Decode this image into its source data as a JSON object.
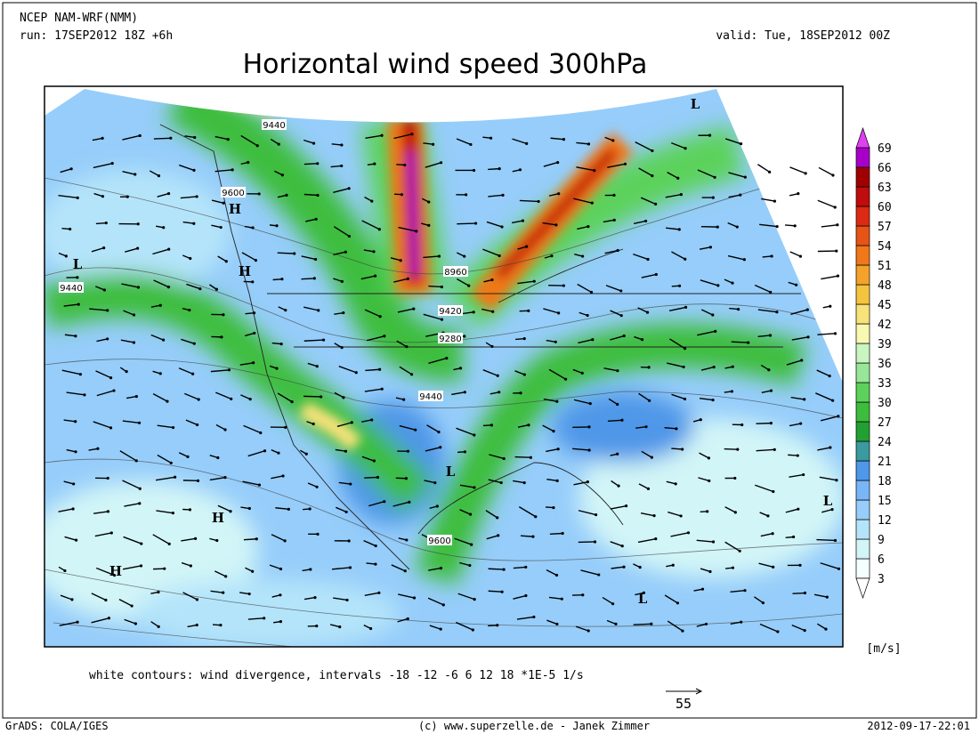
{
  "header": {
    "model": "NCEP NAM-WRF(NMM)",
    "run": "run: 17SEP2012 18Z +6h",
    "valid": "valid: Tue, 18SEP2012 00Z",
    "title": "Horizontal wind speed 300hPa"
  },
  "map": {
    "contour_labels": [
      "9440",
      "9600",
      "9440",
      "8960",
      "9420",
      "9280",
      "9440",
      "9600"
    ],
    "pressure_centers": [
      "H",
      "H",
      "H",
      "H",
      "L",
      "L",
      "L",
      "L",
      "L"
    ]
  },
  "colorbar": {
    "levels": [
      3,
      6,
      9,
      12,
      15,
      18,
      21,
      24,
      27,
      30,
      33,
      36,
      39,
      42,
      45,
      48,
      51,
      54,
      57,
      60,
      63,
      66,
      69
    ],
    "colors": [
      "#f4ffff",
      "#d2f5f7",
      "#b4e4fa",
      "#96cdfa",
      "#78b6f8",
      "#4f97e8",
      "#3b9a9e",
      "#22a032",
      "#3cbd3c",
      "#5cd25c",
      "#98e698",
      "#c8f5c0",
      "#f8f8b0",
      "#f8e27a",
      "#f5c43e",
      "#f4a22a",
      "#f07818",
      "#e65416",
      "#dc2a14",
      "#c00c0c",
      "#a00000",
      "#a800c8"
    ],
    "under_color": "#ffffff",
    "over_color": "#e040f0",
    "unit": "[m/s]"
  },
  "footer": {
    "note": "white contours: wind divergence, intervals -18 -12 -6 6 12 18 *1E-5 1/s",
    "vector_scale": "55",
    "software": "GrADS: COLA/IGES",
    "credit": "(c) www.superzelle.de - Janek Zimmer",
    "timestamp": "2012-09-17-22:01"
  }
}
